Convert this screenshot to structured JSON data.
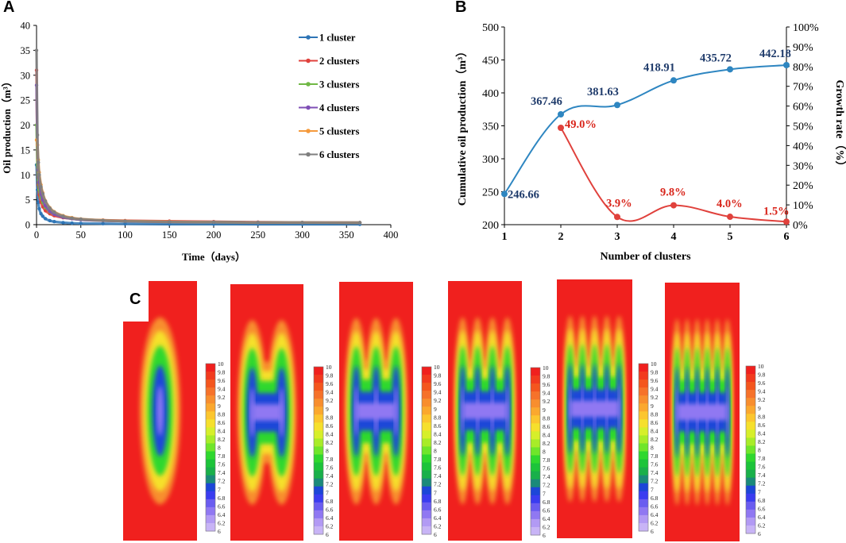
{
  "panels": {
    "a": "A",
    "b": "B",
    "c": "C"
  },
  "chart_data": [
    {
      "id": "A",
      "type": "line",
      "title": "",
      "xlabel": "Time（days）",
      "ylabel": "Oil production（m³）",
      "xlim": [
        0,
        400
      ],
      "ylim": [
        0,
        40
      ],
      "xticks": [
        0,
        50,
        100,
        150,
        200,
        250,
        300,
        350,
        400
      ],
      "yticks": [
        0,
        5,
        10,
        15,
        20,
        25,
        30,
        35,
        40
      ],
      "legend_position": "right",
      "grid": false,
      "x": [
        0,
        1,
        2,
        3,
        5,
        7,
        10,
        15,
        20,
        30,
        40,
        50,
        75,
        100,
        150,
        200,
        250,
        300,
        365
      ],
      "series": [
        {
          "name": "1 cluster",
          "color": "#2e75b6",
          "values": [
            12,
            7,
            4.5,
            3.2,
            2.2,
            1.7,
            1.2,
            0.8,
            0.6,
            0.4,
            0.3,
            0.25,
            0.2,
            0.15,
            0.1,
            0.1,
            0.08,
            0.08,
            0.07
          ]
        },
        {
          "name": "2 clusters",
          "color": "#e0413c",
          "values": [
            31,
            12,
            8,
            6,
            4.5,
            3.6,
            2.8,
            2.2,
            1.8,
            1.4,
            1.2,
            1.05,
            0.9,
            0.8,
            0.7,
            0.6,
            0.5,
            0.45,
            0.4
          ]
        },
        {
          "name": "3 clusters",
          "color": "#70b845",
          "values": [
            20,
            12,
            9,
            7,
            5.5,
            4.5,
            3.5,
            2.6,
            2.1,
            1.5,
            1.2,
            1.0,
            0.8,
            0.7,
            0.55,
            0.5,
            0.45,
            0.42,
            0.4
          ]
        },
        {
          "name": "4 clusters",
          "color": "#7f4fb6",
          "values": [
            28,
            16,
            11,
            8.5,
            6.2,
            5,
            3.8,
            2.7,
            2.1,
            1.5,
            1.2,
            1.0,
            0.8,
            0.7,
            0.55,
            0.5,
            0.45,
            0.42,
            0.4
          ]
        },
        {
          "name": "5 clusters",
          "color": "#f59a3c",
          "values": [
            17,
            16,
            13,
            10.5,
            8,
            6.4,
            4.8,
            3.4,
            2.6,
            1.8,
            1.4,
            1.15,
            0.9,
            0.75,
            0.6,
            0.5,
            0.45,
            0.42,
            0.4
          ]
        },
        {
          "name": "6 clusters",
          "color": "#7f7f7f",
          "values": [
            35,
            18,
            12.5,
            10,
            7.6,
            6.2,
            4.7,
            3.3,
            2.5,
            1.7,
            1.3,
            1.1,
            0.85,
            0.7,
            0.55,
            0.5,
            0.45,
            0.42,
            0.4
          ]
        }
      ]
    },
    {
      "id": "B",
      "type": "line",
      "title": "",
      "xlabel": "Number of clusters",
      "ylabel": "Cumulative oil production（m³）",
      "y2label": "Growth rate（%）",
      "categories": [
        1,
        2,
        3,
        4,
        5,
        6
      ],
      "ylim": [
        200,
        500
      ],
      "yticks": [
        200,
        250,
        300,
        350,
        400,
        450,
        500
      ],
      "y2lim": [
        0,
        100
      ],
      "y2ticks": [
        "0%",
        "10%",
        "20%",
        "30%",
        "40%",
        "50%",
        "60%",
        "70%",
        "80%",
        "90%",
        "100%"
      ],
      "series": [
        {
          "name": "Cumulative oil production",
          "axis": "left",
          "color": "#2e86c1",
          "label_color": "#1f3b6b",
          "values": [
            246.66,
            367.46,
            381.63,
            418.91,
            435.72,
            442.18
          ],
          "labels": [
            "246.66",
            "367.46",
            "381.63",
            "418.91",
            "435.72",
            "442.18"
          ]
        },
        {
          "name": "Growth rate",
          "axis": "right",
          "color": "#e0413c",
          "label_color": "#d9261c",
          "x": [
            2,
            3,
            4,
            5,
            6
          ],
          "values": [
            49.0,
            3.9,
            9.8,
            4.0,
            1.5
          ],
          "labels": [
            "49.0%",
            "3.9%",
            "9.8%",
            "4.0%",
            "1.5%"
          ]
        }
      ]
    },
    {
      "id": "C",
      "type": "heatmap",
      "title": "",
      "clusters": [
        1,
        2,
        3,
        4,
        5,
        6
      ],
      "colorbar_ticks": [
        "10",
        "9.8",
        "9.6",
        "9.4",
        "9.2",
        "9",
        "8.8",
        "8.6",
        "8.4",
        "8.2",
        "8",
        "7.8",
        "7.6",
        "7.4",
        "7.2",
        "7",
        "6.8",
        "6.6",
        "6.4",
        "6.2",
        "6"
      ],
      "colorbar_colors": [
        "#f0201e",
        "#f23a1e",
        "#f4561e",
        "#f6722a",
        "#f88e2e",
        "#fba82e",
        "#fcc62e",
        "#f6e02c",
        "#d6ef2a",
        "#a8ec28",
        "#6fe62a",
        "#2fd82e",
        "#1cc43a",
        "#19b04a",
        "#1a8a7a",
        "#1c46d8",
        "#3a3cf0",
        "#6a5cf0",
        "#9078f2",
        "#b29af4",
        "#c8b4f6"
      ]
    }
  ]
}
